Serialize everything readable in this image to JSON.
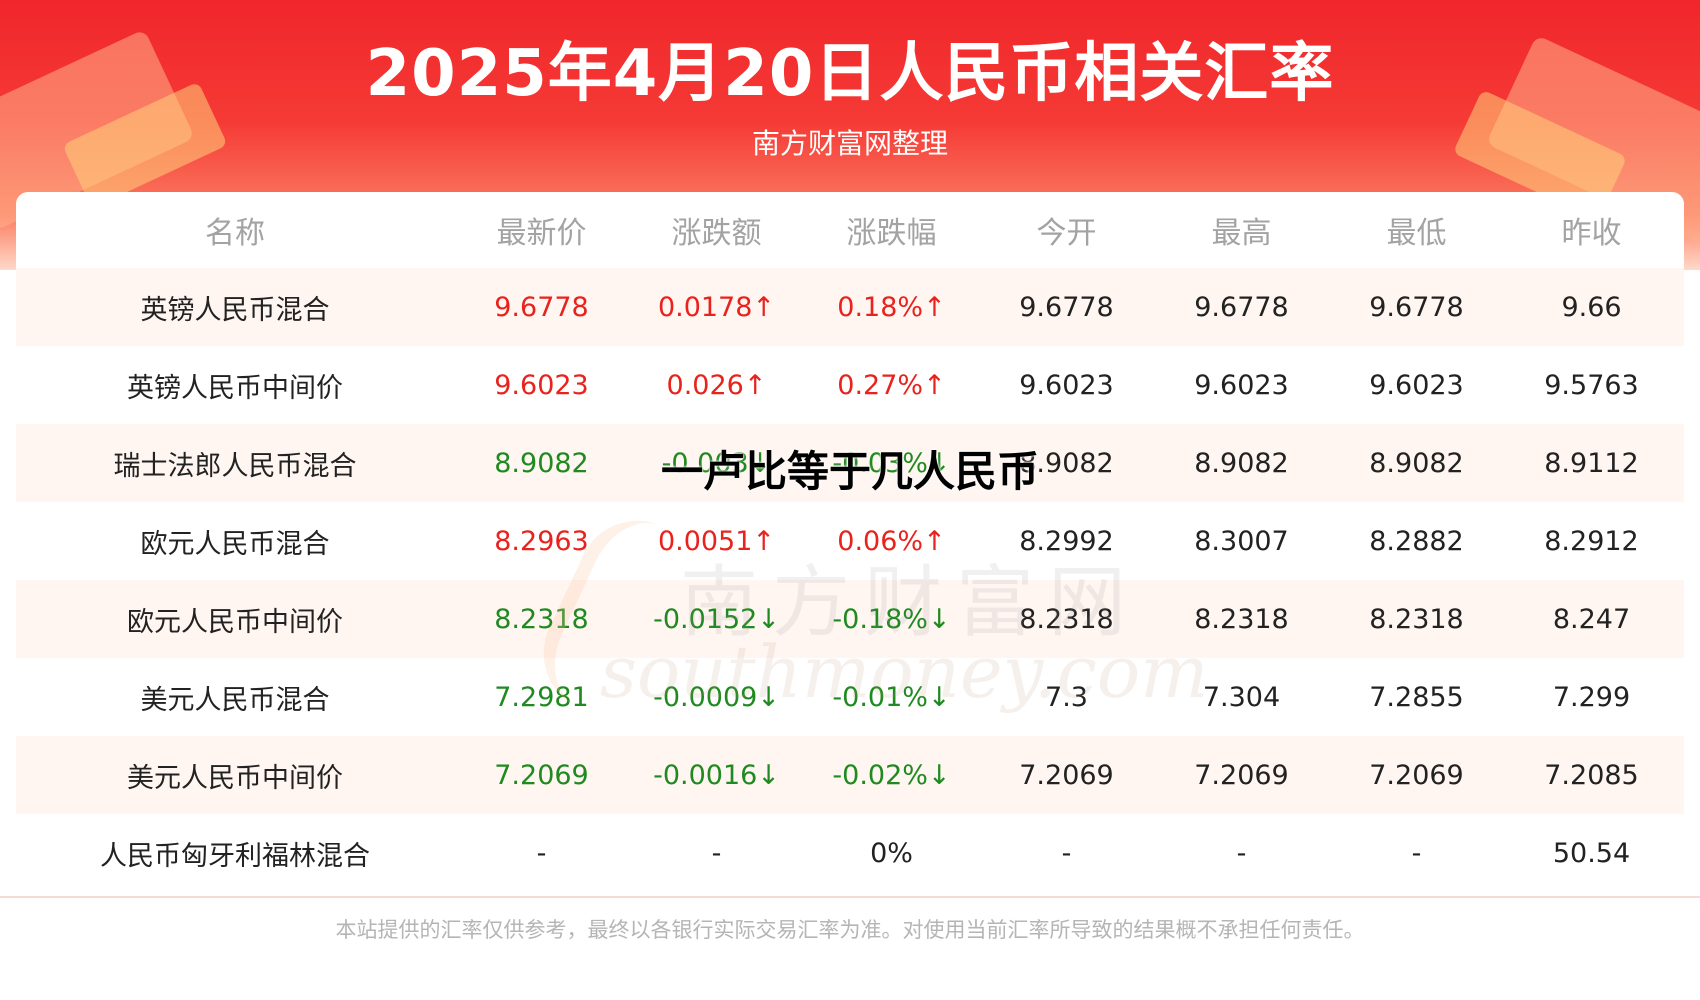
{
  "header": {
    "title": "2025年4月20日人民币相关汇率",
    "subtitle": "南方财富网整理"
  },
  "table": {
    "columns": [
      "名称",
      "最新价",
      "涨跌额",
      "涨跌幅",
      "今开",
      "最高",
      "最低",
      "昨收"
    ],
    "rows": [
      {
        "name": "英镑人民币混合",
        "latest": "9.6778",
        "change": "0.0178↑",
        "pct": "0.18%↑",
        "open": "9.6778",
        "high": "9.6778",
        "low": "9.6778",
        "prev": "9.66",
        "trend": "up"
      },
      {
        "name": "英镑人民币中间价",
        "latest": "9.6023",
        "change": "0.026↑",
        "pct": "0.27%↑",
        "open": "9.6023",
        "high": "9.6023",
        "low": "9.6023",
        "prev": "9.5763",
        "trend": "up"
      },
      {
        "name": "瑞士法郎人民币混合",
        "latest": "8.9082",
        "change": "-0.003↓",
        "pct": "-0.03%↓",
        "open": "8.9082",
        "high": "8.9082",
        "low": "8.9082",
        "prev": "8.9112",
        "trend": "down"
      },
      {
        "name": "欧元人民币混合",
        "latest": "8.2963",
        "change": "0.0051↑",
        "pct": "0.06%↑",
        "open": "8.2992",
        "high": "8.3007",
        "low": "8.2882",
        "prev": "8.2912",
        "trend": "up"
      },
      {
        "name": "欧元人民币中间价",
        "latest": "8.2318",
        "change": "-0.0152↓",
        "pct": "-0.18%↓",
        "open": "8.2318",
        "high": "8.2318",
        "low": "8.2318",
        "prev": "8.247",
        "trend": "down"
      },
      {
        "name": "美元人民币混合",
        "latest": "7.2981",
        "change": "-0.0009↓",
        "pct": "-0.01%↓",
        "open": "7.3",
        "high": "7.304",
        "low": "7.2855",
        "prev": "7.299",
        "trend": "down"
      },
      {
        "name": "美元人民币中间价",
        "latest": "7.2069",
        "change": "-0.0016↓",
        "pct": "-0.02%↓",
        "open": "7.2069",
        "high": "7.2069",
        "low": "7.2069",
        "prev": "7.2085",
        "trend": "down"
      },
      {
        "name": "人民币匈牙利福林混合",
        "latest": "-",
        "change": "-",
        "pct": "0%",
        "open": "-",
        "high": "-",
        "low": "-",
        "prev": "50.54",
        "trend": "flat"
      }
    ]
  },
  "watermark": {
    "cn": "南方财富网",
    "en": "southmoney.com"
  },
  "overlay_text": "一卢比等于几人民币",
  "footer": "本站提供的汇率仅供参考，最终以各银行实际交易汇率为准。对使用当前汇率所导致的结果概不承担任何责任。",
  "colors": {
    "up": "#e8221c",
    "down": "#1f8a1f",
    "header_red": "#f0262b"
  }
}
